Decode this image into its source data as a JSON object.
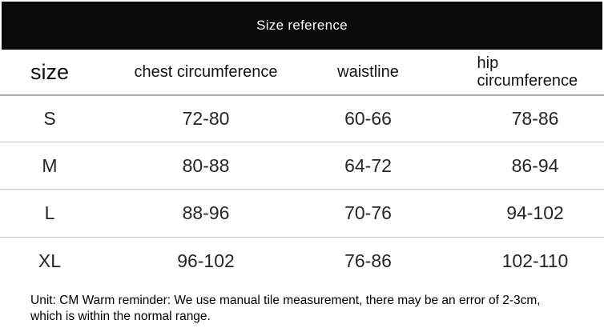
{
  "banner": {
    "title": "Size reference"
  },
  "table": {
    "header": {
      "size": "size",
      "chest": "chest circumference",
      "waist": "waistline",
      "hip": "hip circumference"
    },
    "rows": [
      {
        "size": "S",
        "chest": "72-80",
        "waist": "60-66",
        "hip": "78-86"
      },
      {
        "size": "M",
        "chest": "80-88",
        "waist": "64-72",
        "hip": "86-94"
      },
      {
        "size": "L",
        "chest": "88-96",
        "waist": "70-76",
        "hip": "94-102"
      },
      {
        "size": "XL",
        "chest": "96-102",
        "waist": "76-86",
        "hip": "102-110"
      }
    ]
  },
  "footer": {
    "note": "Unit: CM Warm reminder: We use manual tile measurement, there may be an error of 2-3cm, which is within the normal range."
  },
  "colors": {
    "banner_bg": "#0a0a0a",
    "banner_text": "#ffffff",
    "header_divider": "#adadad",
    "row_divider": "#c7c7c7"
  },
  "chart_data": {
    "type": "table",
    "title": "Size reference",
    "unit": "CM",
    "columns": [
      "size",
      "chest circumference",
      "waistline",
      "hip circumference"
    ],
    "rows": [
      [
        "S",
        "72-80",
        "60-66",
        "78-86"
      ],
      [
        "M",
        "80-88",
        "64-72",
        "86-94"
      ],
      [
        "L",
        "88-96",
        "70-76",
        "94-102"
      ],
      [
        "XL",
        "96-102",
        "76-86",
        "102-110"
      ]
    ],
    "note": "Unit: CM Warm reminder: We use manual tile measurement, there may be an error of 2-3cm, which is within the normal range."
  }
}
